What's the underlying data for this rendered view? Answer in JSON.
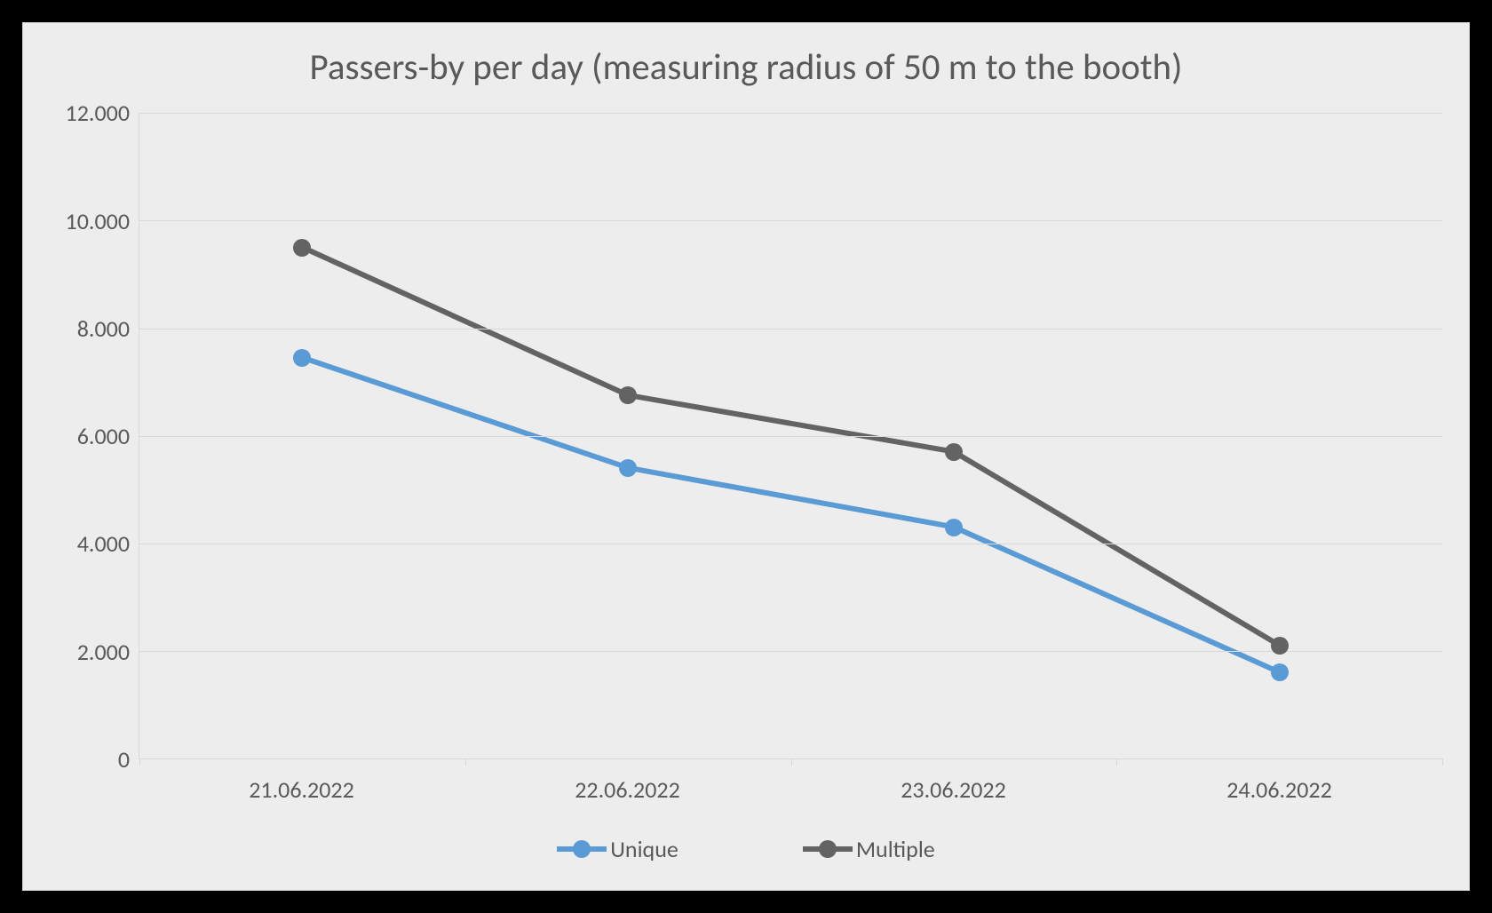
{
  "chart": {
    "type": "line",
    "title": "Passers-by per day (measuring radius of 50 m to the booth)",
    "title_fontsize": 41,
    "title_color": "#595959",
    "background_color": "#ededed",
    "outer_frame_color": "#000000",
    "plot_border_color": "#d9d9d9",
    "grid_color": "#d9d9d9",
    "axis_label_color": "#595959",
    "axis_label_fontsize": 26,
    "x": {
      "categories": [
        "21.06.2022",
        "22.06.2022",
        "23.06.2022",
        "24.06.2022"
      ]
    },
    "y": {
      "min": 0,
      "max": 12000,
      "tick_step": 2000,
      "tick_labels": [
        "0",
        "2.000",
        "4.000",
        "6.000",
        "8.000",
        "10.000",
        "12.000"
      ]
    },
    "series": [
      {
        "name": "Unique",
        "values": [
          7450,
          5400,
          4300,
          1600
        ],
        "color": "#5b9bd5",
        "line_width": 6,
        "marker_radius": 10
      },
      {
        "name": "Multiple",
        "values": [
          9500,
          6750,
          5700,
          2100
        ],
        "color": "#636363",
        "line_width": 6,
        "marker_radius": 10
      }
    ],
    "legend": {
      "position": "bottom",
      "fontsize": 26
    }
  }
}
